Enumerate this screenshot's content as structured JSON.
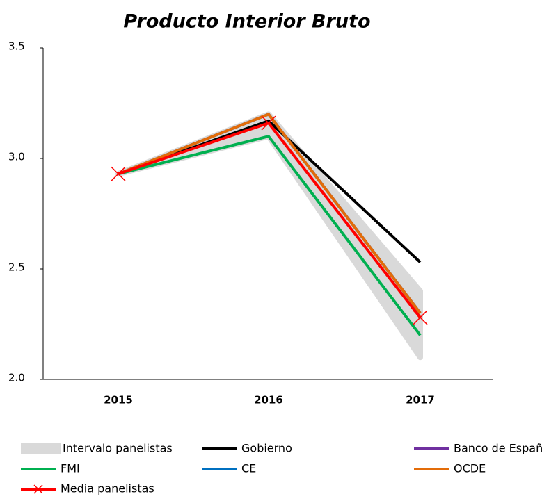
{
  "chart_data": {
    "type": "line",
    "title": "Producto Interior Bruto",
    "categories": [
      "2015",
      "2016",
      "2017"
    ],
    "ylim": [
      2,
      3.5
    ],
    "yticks": [
      {
        "value": 2,
        "label": "2.0"
      },
      2.5,
      {
        "value": 3,
        "label": "3.0"
      },
      3.5
    ],
    "band": {
      "name": "Intervalo panelistas",
      "color": "#d9d9d9",
      "low": [
        2.93,
        3.1,
        2.1
      ],
      "high": [
        2.93,
        3.2,
        2.4
      ]
    },
    "series": [
      {
        "name": "Gobierno",
        "color": "#000000",
        "values": [
          2.93,
          3.17,
          2.53
        ]
      },
      {
        "name": "Banco de España",
        "color": "#7030a0",
        "values": [
          2.93,
          3.2,
          2.3
        ]
      },
      {
        "name": "FMI",
        "color": "#00b050",
        "values": [
          2.93,
          3.1,
          2.2
        ]
      },
      {
        "name": "CE",
        "color": "#0070c0",
        "values": [
          2.93,
          3.2,
          2.3
        ]
      },
      {
        "name": "OCDE",
        "color": "#e36c09",
        "values": [
          2.93,
          3.2,
          2.3
        ]
      },
      {
        "name": "Media panelistas",
        "color": "#ff0000",
        "values": [
          2.93,
          3.16,
          2.28
        ],
        "marker": "x"
      }
    ]
  }
}
